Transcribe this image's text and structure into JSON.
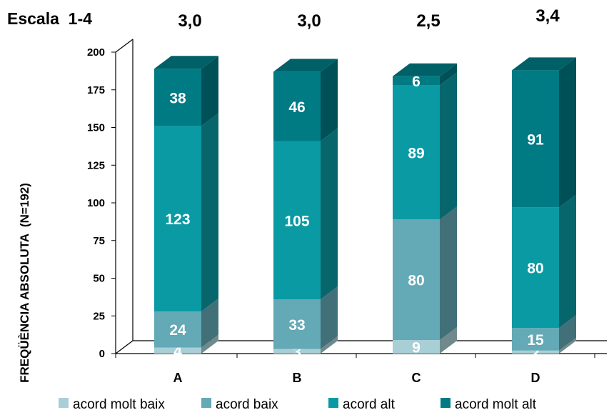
{
  "chart_data": {
    "type": "bar",
    "stacked": true,
    "three_d": true,
    "categories": [
      "A",
      "B",
      "C",
      "D"
    ],
    "series": [
      {
        "name": "acord molt baix",
        "values": [
          4,
          3,
          9,
          2
        ],
        "color": "#a9cfd6"
      },
      {
        "name": "acord baix",
        "values": [
          24,
          33,
          80,
          15
        ],
        "color": "#63a9b6"
      },
      {
        "name": "acord alt",
        "values": [
          123,
          105,
          89,
          80
        ],
        "color": "#0a9aa4"
      },
      {
        "name": "acord molt alt",
        "values": [
          38,
          46,
          6,
          91
        ],
        "color": "#007b84"
      }
    ],
    "scale_label": "Escala  1-4",
    "category_scores": [
      "3,0",
      "3,0",
      "2,5",
      "3,4"
    ],
    "ylabel": "FREQÜÈNCIA ABSOLUTA  (N=192)",
    "xlabel": "",
    "ylim": [
      0,
      200
    ],
    "yticks": [
      0,
      25,
      50,
      75,
      100,
      125,
      150,
      175,
      200
    ],
    "grid": false,
    "legend_position": "bottom"
  }
}
